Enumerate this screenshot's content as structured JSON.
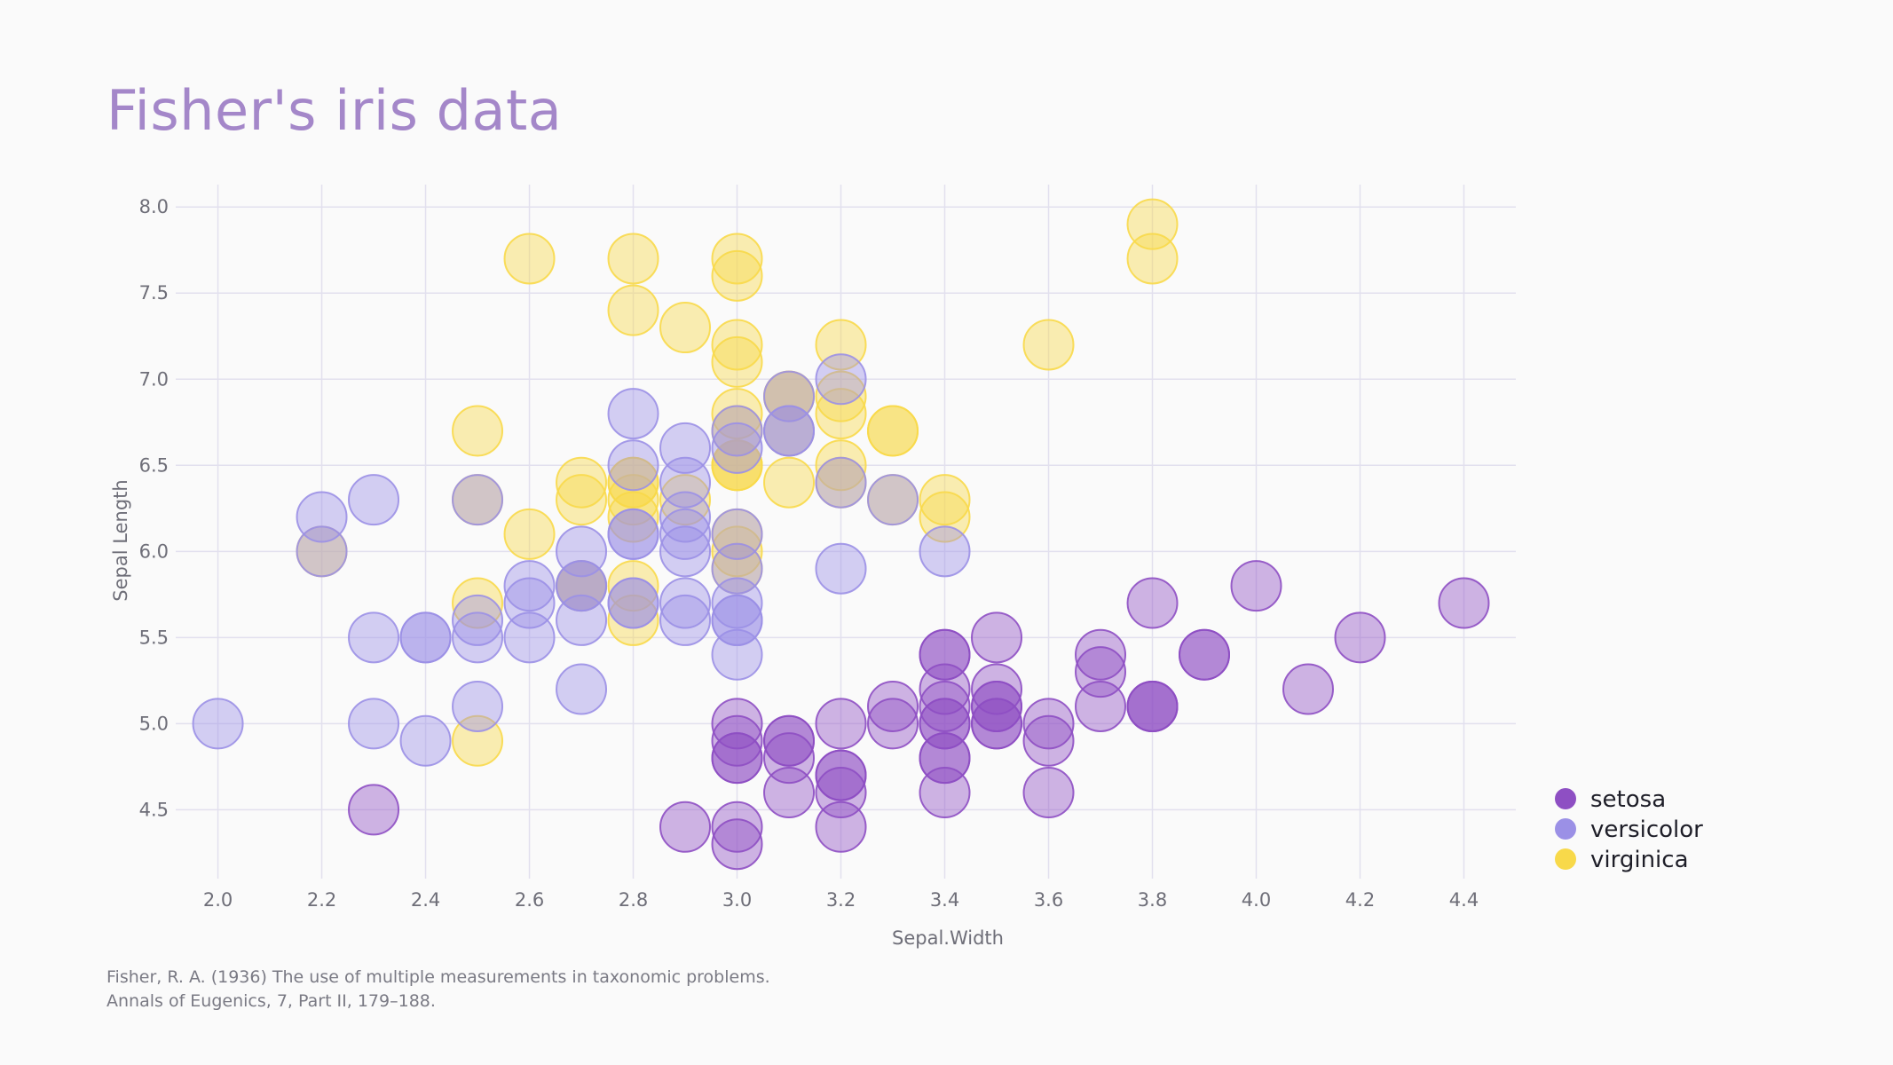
{
  "chart_data": {
    "type": "scatter",
    "title": "Fisher's iris data",
    "xlabel": "Sepal.Width",
    "ylabel": "Sepal Length",
    "xlim": [
      1.97,
      4.5
    ],
    "ylim": [
      4.1,
      8.13
    ],
    "x_ticks": [
      "2.0",
      "2.2",
      "2.4",
      "2.6",
      "2.8",
      "3.0",
      "3.2",
      "3.4",
      "3.6",
      "3.8",
      "4.0",
      "4.2",
      "4.4"
    ],
    "y_ticks": [
      "4.5",
      "5.0",
      "5.5",
      "6.0",
      "6.5",
      "7.0",
      "7.5",
      "8.0"
    ],
    "grid": true,
    "legend_position": "bottom-right",
    "series": [
      {
        "name": "setosa",
        "color": "#8e4fc3",
        "points": [
          [
            3.5,
            5.1
          ],
          [
            3.0,
            4.9
          ],
          [
            3.2,
            4.7
          ],
          [
            3.1,
            4.6
          ],
          [
            3.6,
            5.0
          ],
          [
            3.9,
            5.4
          ],
          [
            3.4,
            4.6
          ],
          [
            3.4,
            5.0
          ],
          [
            2.9,
            4.4
          ],
          [
            3.1,
            4.9
          ],
          [
            3.7,
            5.4
          ],
          [
            3.4,
            4.8
          ],
          [
            3.0,
            4.8
          ],
          [
            3.0,
            4.3
          ],
          [
            4.0,
            5.8
          ],
          [
            4.4,
            5.7
          ],
          [
            3.9,
            5.4
          ],
          [
            3.5,
            5.1
          ],
          [
            3.8,
            5.7
          ],
          [
            3.8,
            5.1
          ],
          [
            3.4,
            5.4
          ],
          [
            3.7,
            5.1
          ],
          [
            3.6,
            4.6
          ],
          [
            3.3,
            5.1
          ],
          [
            3.4,
            4.8
          ],
          [
            3.0,
            5.0
          ],
          [
            3.4,
            5.0
          ],
          [
            3.5,
            5.2
          ],
          [
            3.4,
            5.2
          ],
          [
            3.2,
            4.7
          ],
          [
            3.1,
            4.8
          ],
          [
            3.4,
            5.4
          ],
          [
            4.1,
            5.2
          ],
          [
            4.2,
            5.5
          ],
          [
            3.1,
            4.9
          ],
          [
            3.2,
            5.0
          ],
          [
            3.5,
            5.5
          ],
          [
            3.6,
            4.9
          ],
          [
            3.0,
            4.4
          ],
          [
            3.4,
            5.1
          ],
          [
            3.5,
            5.0
          ],
          [
            2.3,
            4.5
          ],
          [
            3.2,
            4.4
          ],
          [
            3.5,
            5.0
          ],
          [
            3.8,
            5.1
          ],
          [
            3.0,
            4.8
          ],
          [
            3.8,
            5.1
          ],
          [
            3.2,
            4.6
          ],
          [
            3.7,
            5.3
          ],
          [
            3.3,
            5.0
          ]
        ]
      },
      {
        "name": "versicolor",
        "color": "#9b90e6",
        "points": [
          [
            3.2,
            7.0
          ],
          [
            3.2,
            6.4
          ],
          [
            3.1,
            6.9
          ],
          [
            2.3,
            5.5
          ],
          [
            2.8,
            6.5
          ],
          [
            2.8,
            5.7
          ],
          [
            3.3,
            6.3
          ],
          [
            2.4,
            4.9
          ],
          [
            2.9,
            6.6
          ],
          [
            2.7,
            5.2
          ],
          [
            2.0,
            5.0
          ],
          [
            3.0,
            5.9
          ],
          [
            2.2,
            6.0
          ],
          [
            2.9,
            6.1
          ],
          [
            2.9,
            5.6
          ],
          [
            3.1,
            6.7
          ],
          [
            3.0,
            5.6
          ],
          [
            2.7,
            5.8
          ],
          [
            2.2,
            6.2
          ],
          [
            2.5,
            5.6
          ],
          [
            3.2,
            5.9
          ],
          [
            2.8,
            6.1
          ],
          [
            2.5,
            6.3
          ],
          [
            2.8,
            6.1
          ],
          [
            2.9,
            6.4
          ],
          [
            3.0,
            6.6
          ],
          [
            2.8,
            6.8
          ],
          [
            3.0,
            6.7
          ],
          [
            2.9,
            6.0
          ],
          [
            2.6,
            5.7
          ],
          [
            2.4,
            5.5
          ],
          [
            2.4,
            5.5
          ],
          [
            2.7,
            5.8
          ],
          [
            2.7,
            6.0
          ],
          [
            3.0,
            5.4
          ],
          [
            3.4,
            6.0
          ],
          [
            3.1,
            6.7
          ],
          [
            2.3,
            6.3
          ],
          [
            3.0,
            5.6
          ],
          [
            2.5,
            5.5
          ],
          [
            2.6,
            5.5
          ],
          [
            3.0,
            6.1
          ],
          [
            2.6,
            5.8
          ],
          [
            2.3,
            5.0
          ],
          [
            2.7,
            5.6
          ],
          [
            3.0,
            5.7
          ],
          [
            2.9,
            5.7
          ],
          [
            2.9,
            6.2
          ],
          [
            2.5,
            5.1
          ],
          [
            2.8,
            5.7
          ]
        ]
      },
      {
        "name": "virginica",
        "color": "#f8d94a",
        "points": [
          [
            3.3,
            6.3
          ],
          [
            2.7,
            5.8
          ],
          [
            3.0,
            7.1
          ],
          [
            2.9,
            6.3
          ],
          [
            3.0,
            6.5
          ],
          [
            3.0,
            7.6
          ],
          [
            2.5,
            4.9
          ],
          [
            2.9,
            7.3
          ],
          [
            2.5,
            6.7
          ],
          [
            3.6,
            7.2
          ],
          [
            3.2,
            6.5
          ],
          [
            2.7,
            6.4
          ],
          [
            3.0,
            6.8
          ],
          [
            2.5,
            5.7
          ],
          [
            2.8,
            5.8
          ],
          [
            3.2,
            6.4
          ],
          [
            3.0,
            6.5
          ],
          [
            3.8,
            7.7
          ],
          [
            2.6,
            7.7
          ],
          [
            2.2,
            6.0
          ],
          [
            3.2,
            6.9
          ],
          [
            2.8,
            5.6
          ],
          [
            2.8,
            7.7
          ],
          [
            2.7,
            6.3
          ],
          [
            3.3,
            6.7
          ],
          [
            3.2,
            7.2
          ],
          [
            2.8,
            6.2
          ],
          [
            3.0,
            6.1
          ],
          [
            2.8,
            6.4
          ],
          [
            3.0,
            7.2
          ],
          [
            2.8,
            7.4
          ],
          [
            3.8,
            7.9
          ],
          [
            2.8,
            6.4
          ],
          [
            2.8,
            6.3
          ],
          [
            2.6,
            6.1
          ],
          [
            3.0,
            7.7
          ],
          [
            3.4,
            6.3
          ],
          [
            3.1,
            6.4
          ],
          [
            3.0,
            6.0
          ],
          [
            3.1,
            6.9
          ],
          [
            3.1,
            6.7
          ],
          [
            3.1,
            6.9
          ],
          [
            2.7,
            5.8
          ],
          [
            3.2,
            6.8
          ],
          [
            3.3,
            6.7
          ],
          [
            3.0,
            6.7
          ],
          [
            2.5,
            6.3
          ],
          [
            3.0,
            6.5
          ],
          [
            3.4,
            6.2
          ],
          [
            3.0,
            5.9
          ]
        ]
      }
    ]
  },
  "caption": {
    "line1": "Fisher, R. A. (1936) The use of multiple measurements in taxonomic problems.",
    "line2": "Annals of Eugenics, 7, Part II, 179–188."
  }
}
